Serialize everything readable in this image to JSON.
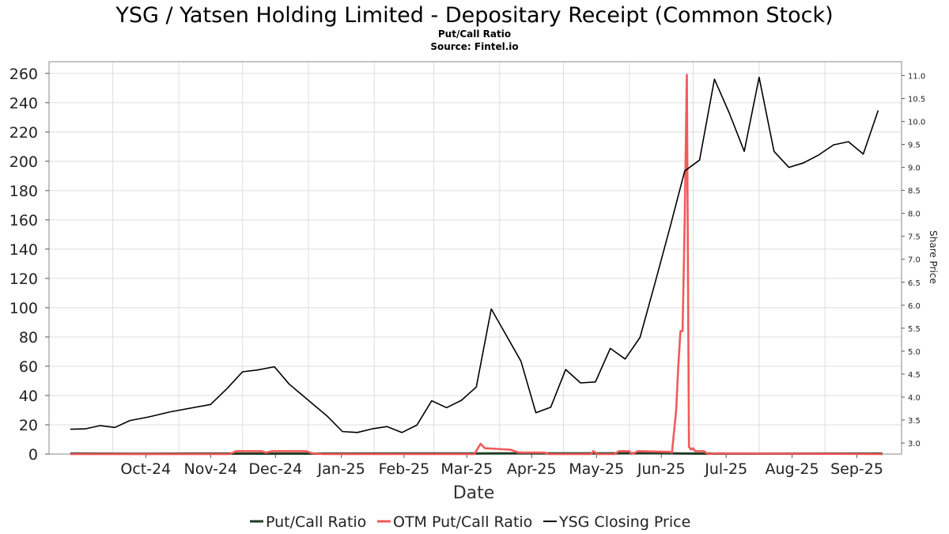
{
  "chart_data": {
    "type": "line",
    "title": "YSG / Yatsen Holding Limited - Depositary Receipt (Common Stock)",
    "subtitle": "Put/Call Ratio",
    "source": "Source: Fintel.io",
    "xlabel": "Date",
    "ylabel_right": "Share Price",
    "x_categories": [
      "Oct-24",
      "Nov-24",
      "Dec-24",
      "Jan-25",
      "Feb-25",
      "Mar-25",
      "Apr-25",
      "May-25",
      "Jun-25",
      "Jul-25",
      "Aug-25",
      "Sep-25"
    ],
    "left_axis": {
      "ticks": [
        0,
        20,
        40,
        60,
        80,
        100,
        120,
        140,
        160,
        180,
        200,
        220,
        240,
        260
      ],
      "ylim": [
        0,
        268
      ]
    },
    "right_axis": {
      "ticks": [
        3.0,
        3.5,
        4.0,
        4.5,
        5.0,
        5.5,
        6.0,
        6.5,
        7.0,
        7.5,
        8.0,
        8.5,
        9.0,
        9.5,
        10.0,
        10.5,
        11.0
      ],
      "tick_labels": [
        "3.0",
        "3.5",
        "4.0",
        "4.5",
        "5.0",
        "5.5",
        "6.0",
        "6.5",
        "7.0",
        "7.5",
        "8.0",
        "8.5",
        "9.0",
        "9.5",
        "10.0",
        "10.5",
        "11.0"
      ],
      "ylim": [
        2.76,
        11.3
      ]
    },
    "grid": true,
    "legend_position": "bottom-center",
    "series": [
      {
        "name": "Put/Call Ratio",
        "color": "#1f3b24",
        "axis": "left",
        "points": [
          [
            "2024-09-11",
            0.3
          ],
          [
            "2024-10-15",
            0.2
          ],
          [
            "2024-11-15",
            0.3
          ],
          [
            "2024-12-15",
            0.3
          ],
          [
            "2025-01-15",
            0.3
          ],
          [
            "2025-02-15",
            0.4
          ],
          [
            "2025-03-15",
            0.4
          ],
          [
            "2025-04-15",
            0.5
          ],
          [
            "2025-05-15",
            0.5
          ],
          [
            "2025-06-15",
            0.6
          ],
          [
            "2025-06-25",
            0.4
          ],
          [
            "2025-07-15",
            0.3
          ],
          [
            "2025-08-15",
            0.3
          ],
          [
            "2025-09-15",
            0.3
          ],
          [
            "2025-09-28",
            0.3
          ]
        ]
      },
      {
        "name": "OTM Put/Call Ratio",
        "color": "#f25a5a",
        "axis": "left",
        "points": [
          [
            "2024-09-11",
            0
          ],
          [
            "2024-11-25",
            0
          ],
          [
            "2024-11-28",
            2
          ],
          [
            "2024-12-10",
            2
          ],
          [
            "2024-12-12",
            1
          ],
          [
            "2024-12-15",
            2
          ],
          [
            "2024-12-31",
            2
          ],
          [
            "2025-01-03",
            0.5
          ],
          [
            "2025-01-08",
            0
          ],
          [
            "2025-03-20",
            0
          ],
          [
            "2025-03-23",
            7
          ],
          [
            "2025-03-25",
            4
          ],
          [
            "2025-04-06",
            3
          ],
          [
            "2025-04-10",
            1
          ],
          [
            "2025-04-22",
            1
          ],
          [
            "2025-04-24",
            0
          ],
          [
            "2025-05-14",
            0
          ],
          [
            "2025-05-15",
            2
          ],
          [
            "2025-05-17",
            0
          ],
          [
            "2025-05-25",
            0
          ],
          [
            "2025-05-27",
            2
          ],
          [
            "2025-06-01",
            2
          ],
          [
            "2025-06-02",
            0
          ],
          [
            "2025-06-05",
            2
          ],
          [
            "2025-06-20",
            1.5
          ],
          [
            "2025-06-21",
            1
          ],
          [
            "2025-06-23",
            30
          ],
          [
            "2025-06-24",
            60
          ],
          [
            "2025-06-25",
            84
          ],
          [
            "2025-06-26",
            84
          ],
          [
            "2025-06-27",
            160
          ],
          [
            "2025-06-28",
            259
          ],
          [
            "2025-06-29",
            5
          ],
          [
            "2025-06-30",
            3
          ],
          [
            "2025-07-01",
            4
          ],
          [
            "2025-07-02",
            2
          ],
          [
            "2025-07-06",
            2
          ],
          [
            "2025-07-08",
            0
          ],
          [
            "2025-07-11",
            0.5
          ],
          [
            "2025-09-28",
            0
          ]
        ]
      },
      {
        "name": "YSG Closing Price",
        "color": "#000000",
        "axis": "right",
        "points": [
          [
            "2024-09-11",
            3.3
          ],
          [
            "2024-09-18",
            3.31
          ],
          [
            "2024-09-25",
            3.38
          ],
          [
            "2024-10-02",
            3.34
          ],
          [
            "2024-10-09",
            3.49
          ],
          [
            "2024-10-18",
            3.57
          ],
          [
            "2024-10-28",
            3.68
          ],
          [
            "2024-11-16",
            3.84
          ],
          [
            "2024-11-24",
            4.2
          ],
          [
            "2024-12-01",
            4.55
          ],
          [
            "2024-12-08",
            4.59
          ],
          [
            "2024-12-16",
            4.66
          ],
          [
            "2024-12-23",
            4.28
          ],
          [
            "2025-01-10",
            3.58
          ],
          [
            "2025-01-17",
            3.25
          ],
          [
            "2025-01-24",
            3.23
          ],
          [
            "2025-01-31",
            3.31
          ],
          [
            "2025-02-07",
            3.36
          ],
          [
            "2025-02-14",
            3.23
          ],
          [
            "2025-02-21",
            3.39
          ],
          [
            "2025-02-28",
            3.92
          ],
          [
            "2025-03-07",
            3.77
          ],
          [
            "2025-03-14",
            3.93
          ],
          [
            "2025-03-21",
            4.22
          ],
          [
            "2025-03-28",
            5.92
          ],
          [
            "2025-04-11",
            4.78
          ],
          [
            "2025-04-18",
            3.66
          ],
          [
            "2025-04-25",
            3.78
          ],
          [
            "2025-05-02",
            4.6
          ],
          [
            "2025-05-09",
            4.31
          ],
          [
            "2025-05-16",
            4.33
          ],
          [
            "2025-05-23",
            5.06
          ],
          [
            "2025-05-30",
            4.83
          ],
          [
            "2025-06-06",
            5.3
          ],
          [
            "2025-06-13",
            6.48
          ],
          [
            "2025-06-20",
            7.68
          ],
          [
            "2025-06-27",
            8.92
          ],
          [
            "2025-07-04",
            9.16
          ],
          [
            "2025-07-11",
            10.92
          ],
          [
            "2025-07-18",
            10.18
          ],
          [
            "2025-07-25",
            9.35
          ],
          [
            "2025-08-01",
            10.96
          ],
          [
            "2025-08-08",
            9.35
          ],
          [
            "2025-08-15",
            9.0
          ],
          [
            "2025-08-22",
            9.1
          ],
          [
            "2025-08-29",
            9.27
          ],
          [
            "2025-09-05",
            9.49
          ],
          [
            "2025-09-12",
            9.56
          ],
          [
            "2025-09-19",
            9.29
          ],
          [
            "2025-09-26",
            10.24
          ]
        ]
      }
    ]
  }
}
